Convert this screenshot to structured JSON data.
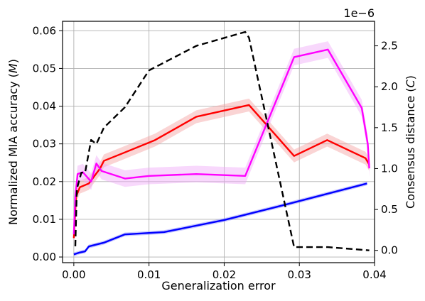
{
  "chart_data": {
    "type": "line",
    "xlabel": "Generalization error",
    "ylabel_left": "Normalized MIA accuracy (",
    "ylabel_left_symbol": "M",
    "ylabel_left_close": ")",
    "ylabel_right": "Consensus distance (",
    "ylabel_right_symbol": "C",
    "ylabel_right_close": ")",
    "right_axis_multiplier": "1e−6",
    "xlim": [
      -0.0015,
      0.04
    ],
    "ylim_left": [
      -0.0015,
      0.0625
    ],
    "ylim_right": [
      -1.5e-07,
      2.8e-06
    ],
    "x_ticks": [
      {
        "value": 0.0,
        "label": "0.00"
      },
      {
        "value": 0.01,
        "label": "0.01"
      },
      {
        "value": 0.02,
        "label": "0.02"
      },
      {
        "value": 0.03,
        "label": "0.03"
      },
      {
        "value": 0.04,
        "label": "0.04"
      }
    ],
    "y_left_ticks": [
      {
        "value": 0.0,
        "label": "0.00"
      },
      {
        "value": 0.01,
        "label": "0.01"
      },
      {
        "value": 0.02,
        "label": "0.02"
      },
      {
        "value": 0.03,
        "label": "0.03"
      },
      {
        "value": 0.04,
        "label": "0.04"
      },
      {
        "value": 0.05,
        "label": "0.05"
      },
      {
        "value": 0.06,
        "label": "0.06"
      }
    ],
    "y_right_ticks": [
      {
        "value": 0.0,
        "label": "0.0"
      },
      {
        "value": 5e-07,
        "label": "0.5"
      },
      {
        "value": 1e-06,
        "label": "1.0"
      },
      {
        "value": 1.5e-06,
        "label": "1.5"
      },
      {
        "value": 2e-06,
        "label": "2.0"
      },
      {
        "value": 2.5e-06,
        "label": "2.5"
      }
    ],
    "grid": true,
    "series": [
      {
        "color": "#0000ff",
        "band_color": "#8888ff",
        "axis": "left",
        "style": "solid",
        "x": [
          0.0,
          0.0008,
          0.0015,
          0.002,
          0.004,
          0.0068,
          0.012,
          0.02,
          0.028,
          0.039
        ],
        "y": [
          0.0007,
          0.0012,
          0.0015,
          0.0028,
          0.0038,
          0.006,
          0.0066,
          0.0098,
          0.0138,
          0.0195
        ],
        "band": 0.0005
      },
      {
        "color": "#ff0000",
        "band_color": "#f5a0a0",
        "axis": "left",
        "style": "solid",
        "x": [
          0.0,
          0.0003,
          0.0008,
          0.002,
          0.0035,
          0.004,
          0.0065,
          0.0108,
          0.0163,
          0.0233,
          0.0293,
          0.0337,
          0.0388,
          0.0393
        ],
        "y": [
          0.005,
          0.016,
          0.0185,
          0.0195,
          0.0235,
          0.0255,
          0.0275,
          0.031,
          0.0372,
          0.0403,
          0.0268,
          0.031,
          0.0262,
          0.0245
        ],
        "band": 0.0017
      },
      {
        "color": "#ff00ff",
        "band_color": "#f0a8f8",
        "axis": "left",
        "style": "solid",
        "x": [
          0.0,
          0.0002,
          0.0005,
          0.0012,
          0.0023,
          0.003,
          0.0037,
          0.0068,
          0.01,
          0.0163,
          0.0228,
          0.0293,
          0.0338,
          0.0383,
          0.0391,
          0.0393
        ],
        "y": [
          0.006,
          0.016,
          0.022,
          0.0225,
          0.02,
          0.0248,
          0.0228,
          0.0208,
          0.0215,
          0.022,
          0.0215,
          0.053,
          0.055,
          0.0395,
          0.03,
          0.0235
        ],
        "band": 0.0022
      },
      {
        "color": "#000000",
        "axis": "right",
        "style": "dashed",
        "x": [
          0.0002,
          0.0004,
          0.001,
          0.0015,
          0.0023,
          0.003,
          0.004,
          0.0068,
          0.01,
          0.0163,
          0.0228,
          0.0233,
          0.0293,
          0.0338,
          0.0393
        ],
        "y": [
          5e-08,
          7.5e-07,
          9.5e-07,
          9.5e-07,
          1.35e-06,
          1.3e-06,
          1.5e-06,
          1.75e-06,
          2.2e-06,
          2.5e-06,
          2.67e-06,
          2.6e-06,
          4e-08,
          4e-08,
          0.0
        ]
      }
    ]
  }
}
